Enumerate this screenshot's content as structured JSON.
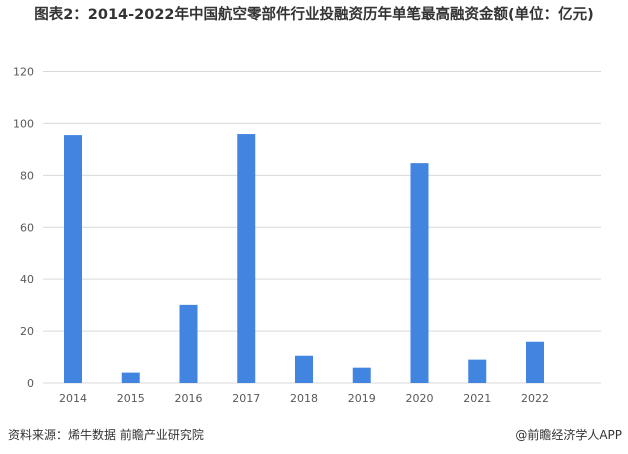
{
  "chart_data": {
    "type": "bar",
    "title": "图表2：2014-2022年中国航空零部件行业投融资历年单笔最高融资金额(单位：亿元)",
    "categories": [
      "2014",
      "2015",
      "2016",
      "2017",
      "2018",
      "2019",
      "2020",
      "2021",
      "2022"
    ],
    "values": [
      95.5,
      4.0,
      30.1,
      95.9,
      10.5,
      5.9,
      84.7,
      9.0,
      15.9
    ],
    "ylim": [
      0,
      120
    ],
    "yticks": [
      0,
      20,
      40,
      60,
      80,
      100,
      120
    ],
    "grid": true,
    "bar_color": "#4285e0"
  },
  "footer": {
    "source": "资料来源：烯牛数据 前瞻产业研究院",
    "credit": "@前瞻经济学人APP"
  }
}
